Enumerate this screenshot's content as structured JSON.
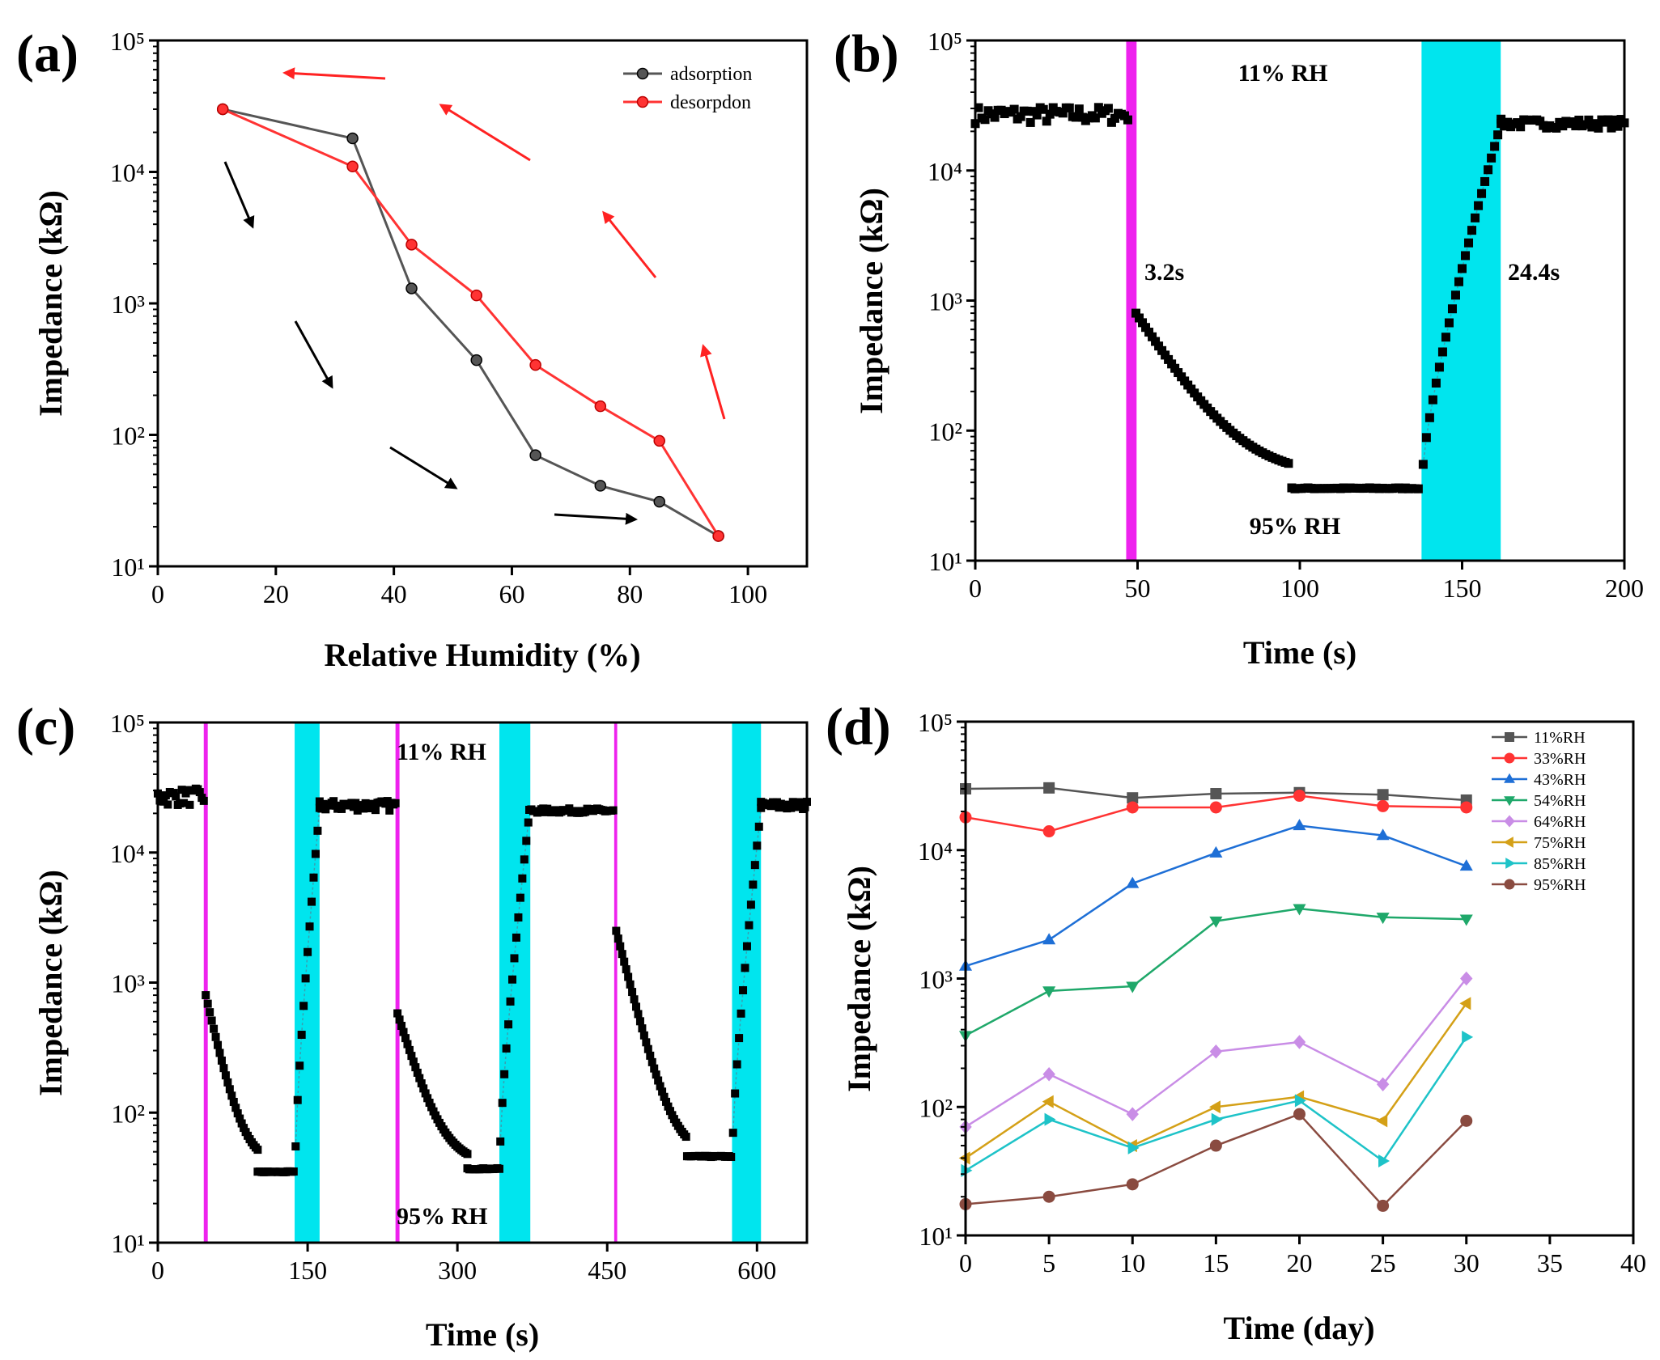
{
  "chart_data": [
    {
      "panel": "(a)",
      "type": "line",
      "xlabel": "Relative Humidity (%)",
      "ylabel": "Impedance (kΩ)",
      "xlim": [
        0,
        110
      ],
      "ylim": [
        10,
        100000
      ],
      "yscale": "log",
      "xticks": [
        0,
        20,
        40,
        60,
        80,
        100
      ],
      "yticks": [
        {
          "value": 10,
          "label": "10¹"
        },
        {
          "value": 100,
          "label": "10²"
        },
        {
          "value": 1000,
          "label": "10³"
        },
        {
          "value": 10000,
          "label": "10⁴"
        },
        {
          "value": 100000,
          "label": "10⁵"
        }
      ],
      "legend_position": "top-right",
      "series": [
        {
          "name": "adsorption",
          "color": "#555555",
          "x": [
            11,
            33,
            43,
            54,
            64,
            75,
            85,
            95
          ],
          "y": [
            30000,
            18000,
            1300,
            370,
            70,
            41,
            31,
            17
          ]
        },
        {
          "name": "desorpdon",
          "color": "#ff3333",
          "x": [
            11,
            33,
            43,
            54,
            64,
            75,
            85,
            95
          ],
          "y": [
            30000,
            11000,
            2800,
            1150,
            340,
            165,
            90,
            17
          ]
        }
      ],
      "arrows_note": "decorative direction arrows: black = adsorption, red = desorption"
    },
    {
      "panel": "(b)",
      "type": "scatter",
      "xlabel": "Time (s)",
      "ylabel": "Impedance (kΩ)",
      "xlim": [
        0,
        200
      ],
      "ylim": [
        10,
        100000
      ],
      "yscale": "log",
      "xticks": [
        0,
        50,
        100,
        150,
        200
      ],
      "yticks": [
        {
          "value": 10,
          "label": "10¹"
        },
        {
          "value": 100,
          "label": "10²"
        },
        {
          "value": 1000,
          "label": "10³"
        },
        {
          "value": 10000,
          "label": "10⁴"
        },
        {
          "value": 100000,
          "label": "10⁵"
        }
      ],
      "annotations": [
        "11% RH",
        "95% RH",
        "3.2s",
        "24.4s"
      ],
      "bands": [
        {
          "name": "response",
          "x0": 46.5,
          "x1": 49.7,
          "color": "#ee22ee"
        },
        {
          "name": "recovery",
          "x0": 137.5,
          "x1": 161.9,
          "color": "#00e5ee"
        }
      ],
      "phases": [
        {
          "t0": 0,
          "t1": 47,
          "type": "flat",
          "level": 27000,
          "jitter": 0.15
        },
        {
          "t0": 49.5,
          "t1": 97,
          "type": "decay",
          "start": 800,
          "end": 45,
          "k": 0.09
        },
        {
          "t0": 97.5,
          "t1": 137,
          "type": "flat",
          "level": 36,
          "jitter": 0.01
        },
        {
          "t0": 138,
          "t1": 162,
          "type": "rise",
          "start": 55,
          "end": 23000
        },
        {
          "t0": 162,
          "t1": 200,
          "type": "flat",
          "level": 23000,
          "jitter": 0.08
        }
      ]
    },
    {
      "panel": "(c)",
      "type": "scatter",
      "xlabel": "Time (s)",
      "ylabel": "Impedance (kΩ)",
      "xlim": [
        0,
        650
      ],
      "ylim": [
        10,
        100000
      ],
      "yscale": "log",
      "xticks": [
        0,
        150,
        300,
        450,
        600
      ],
      "yticks": [
        {
          "value": 10,
          "label": "10¹"
        },
        {
          "value": 100,
          "label": "10²"
        },
        {
          "value": 1000,
          "label": "10³"
        },
        {
          "value": 10000,
          "label": "10⁴"
        },
        {
          "value": 100000,
          "label": "10⁵"
        }
      ],
      "annotations": [
        "11% RH",
        "95% RH"
      ],
      "bands": [
        {
          "name": "response-1",
          "x0": 46,
          "x1": 50,
          "color": "#ee22ee"
        },
        {
          "name": "recovery-1",
          "x0": 137,
          "x1": 162,
          "color": "#00e5ee"
        },
        {
          "name": "response-2",
          "x0": 238,
          "x1": 242,
          "color": "#ee22ee"
        },
        {
          "name": "recovery-2",
          "x0": 342,
          "x1": 373,
          "color": "#00e5ee"
        },
        {
          "name": "response-3",
          "x0": 457,
          "x1": 460,
          "color": "#ee22ee"
        },
        {
          "name": "recovery-3",
          "x0": 575,
          "x1": 604,
          "color": "#00e5ee"
        }
      ],
      "phases": [
        {
          "t0": 0,
          "t1": 47,
          "type": "flat",
          "level": 27000,
          "jitter": 0.15
        },
        {
          "t0": 48,
          "t1": 100,
          "type": "decay",
          "start": 800,
          "end": 40,
          "k": 0.08
        },
        {
          "t0": 100,
          "t1": 137,
          "type": "flat",
          "level": 35,
          "jitter": 0.01
        },
        {
          "t0": 138,
          "t1": 162,
          "type": "rise",
          "start": 55,
          "end": 22000
        },
        {
          "t0": 162,
          "t1": 238,
          "type": "flat",
          "level": 23000,
          "jitter": 0.09
        },
        {
          "t0": 240,
          "t1": 310,
          "type": "decay",
          "start": 580,
          "end": 40,
          "k": 0.06
        },
        {
          "t0": 310,
          "t1": 342,
          "type": "flat",
          "level": 37,
          "jitter": 0.01
        },
        {
          "t0": 343,
          "t1": 372,
          "type": "rise",
          "start": 60,
          "end": 20000
        },
        {
          "t0": 372,
          "t1": 457,
          "type": "flat",
          "level": 21000,
          "jitter": 0.04
        },
        {
          "t0": 459,
          "t1": 530,
          "type": "decay",
          "start": 2500,
          "end": 47,
          "k": 0.07
        },
        {
          "t0": 530,
          "t1": 575,
          "type": "flat",
          "level": 46,
          "jitter": 0.01
        },
        {
          "t0": 576,
          "t1": 604,
          "type": "rise",
          "start": 70,
          "end": 22000
        },
        {
          "t0": 604,
          "t1": 650,
          "type": "flat",
          "level": 23000,
          "jitter": 0.08
        }
      ]
    },
    {
      "panel": "(d)",
      "type": "line",
      "xlabel": "Time (day)",
      "ylabel": "Impedance (kΩ)",
      "xlim": [
        0,
        40
      ],
      "ylim": [
        10,
        100000
      ],
      "yscale": "log",
      "xticks": [
        0,
        5,
        10,
        15,
        20,
        25,
        30,
        35,
        40
      ],
      "yticks": [
        {
          "value": 10,
          "label": "10¹"
        },
        {
          "value": 100,
          "label": "10²"
        },
        {
          "value": 1000,
          "label": "10³"
        },
        {
          "value": 10000,
          "label": "10⁴"
        },
        {
          "value": 100000,
          "label": "10⁵"
        }
      ],
      "legend_position": "top-right",
      "x": [
        0,
        5,
        10,
        15,
        20,
        25,
        30
      ],
      "series": [
        {
          "name": "11%RH",
          "color": "#555555",
          "marker": "square",
          "values": [
            30000,
            30500,
            25500,
            27500,
            28000,
            27000,
            24500
          ]
        },
        {
          "name": "33%RH",
          "color": "#ff3333",
          "marker": "circle",
          "values": [
            18000,
            14000,
            21500,
            21500,
            26500,
            22000,
            21500
          ]
        },
        {
          "name": "43%RH",
          "color": "#1e6fd6",
          "marker": "triangle-up",
          "values": [
            1250,
            2000,
            5500,
            9500,
            15500,
            13000,
            7500
          ]
        },
        {
          "name": "54%RH",
          "color": "#1fa86a",
          "marker": "triangle-down",
          "values": [
            360,
            800,
            870,
            2800,
            3500,
            3000,
            2900
          ]
        },
        {
          "name": "64%RH",
          "color": "#c98de6",
          "marker": "diamond",
          "values": [
            70,
            180,
            88,
            270,
            320,
            150,
            1000
          ]
        },
        {
          "name": "75%RH",
          "color": "#d4a017",
          "marker": "triangle-left",
          "values": [
            40,
            110,
            50,
            100,
            120,
            78,
            640
          ]
        },
        {
          "name": "85%RH",
          "color": "#1ec3c8",
          "marker": "triangle-right",
          "values": [
            32,
            80,
            48,
            80,
            112,
            38,
            350
          ]
        },
        {
          "name": "95%RH",
          "color": "#8a4b40",
          "marker": "circle",
          "values": [
            17.5,
            20,
            25,
            50,
            88,
            17,
            78
          ]
        }
      ]
    }
  ]
}
